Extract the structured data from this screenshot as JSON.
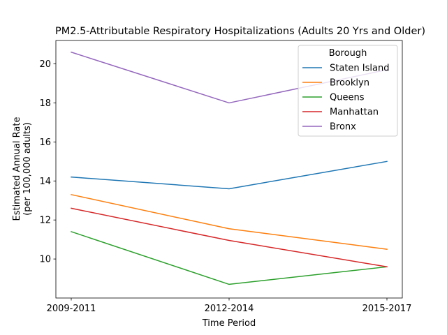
{
  "chart_data": {
    "type": "line",
    "title": "PM2.5-Attributable Respiratory Hospitalizations (Adults 20 Yrs and Older)",
    "xlabel": "Time Period",
    "ylabel_line1": "Estimated Annual Rate",
    "ylabel_line2": "(per 100,000 adults)",
    "categories": [
      "2009-2011",
      "2012-2014",
      "2015-2017"
    ],
    "ylim": [
      8.0,
      21.2
    ],
    "yticks": [
      10,
      12,
      14,
      16,
      18,
      20
    ],
    "grid": false,
    "legend": {
      "title": "Borough",
      "placement": "top-right"
    },
    "series": [
      {
        "name": "Staten Island",
        "color": "#1f77b4",
        "values": [
          14.2,
          13.6,
          15.0
        ]
      },
      {
        "name": "Brooklyn",
        "color": "#ff7f0e",
        "values": [
          13.3,
          11.55,
          10.5
        ]
      },
      {
        "name": "Queens",
        "color": "#2ca02c",
        "values": [
          11.4,
          8.7,
          9.6
        ]
      },
      {
        "name": "Manhattan",
        "color": "#d62728",
        "values": [
          12.6,
          10.95,
          9.6
        ]
      },
      {
        "name": "Bronx",
        "color": "#9467bd",
        "values": [
          20.6,
          18.0,
          19.7
        ]
      }
    ]
  }
}
